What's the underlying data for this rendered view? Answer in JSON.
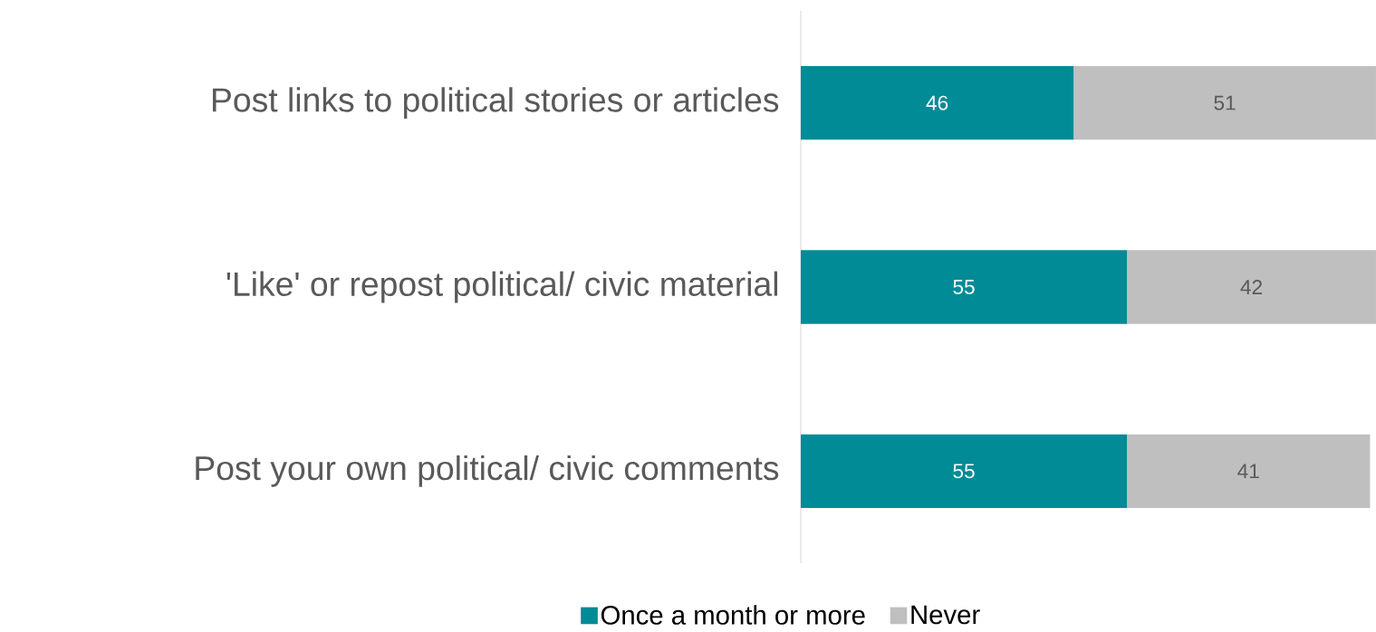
{
  "chart_data": {
    "type": "bar",
    "orientation": "horizontal",
    "stacked": true,
    "data_labels": true,
    "legend": "bottom",
    "categories": [
      "Post links to political stories or articles",
      "'Like' or repost political/ civic material",
      "Post your own political/ civic comments"
    ],
    "series": [
      {
        "name": "Once a month or more",
        "color": "#008b96",
        "values": [
          46,
          55,
          55
        ]
      },
      {
        "name": "Never",
        "color": "#bfbfbf",
        "values": [
          51,
          42,
          41
        ]
      }
    ],
    "tick_labels": "y"
  }
}
